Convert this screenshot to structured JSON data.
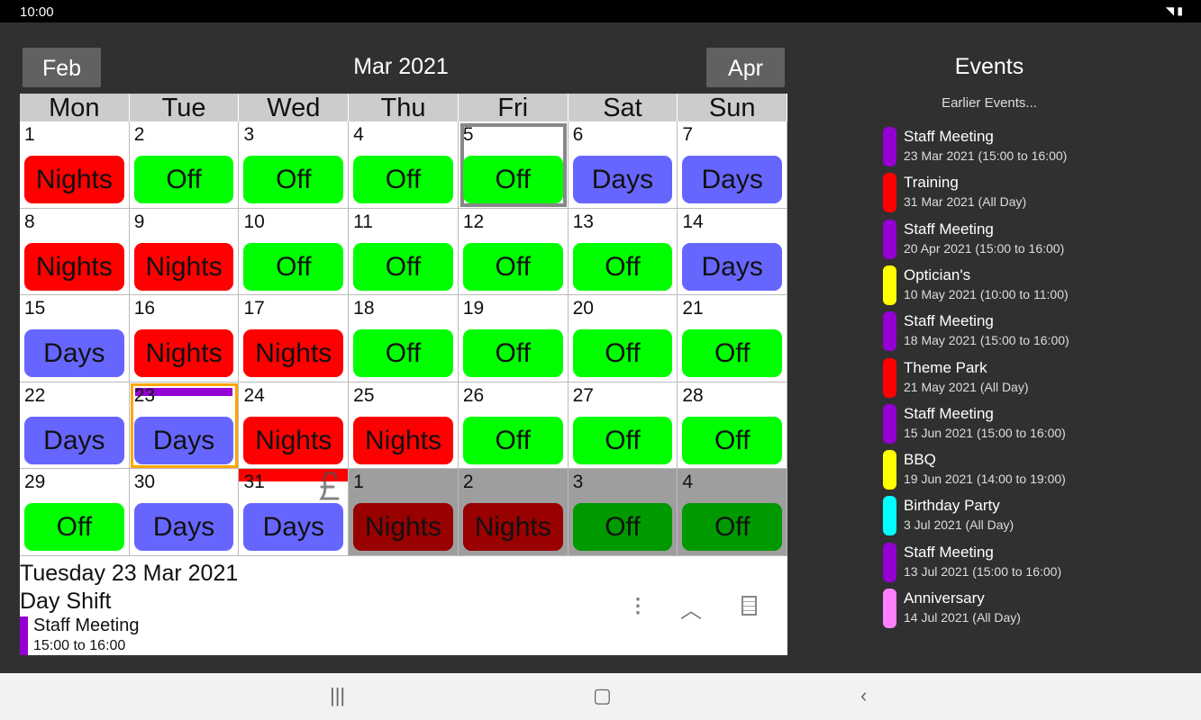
{
  "status": {
    "time": "10:00"
  },
  "header": {
    "prev": "Feb",
    "title": "Mar 2021",
    "next": "Apr"
  },
  "weekdays": [
    "Mon",
    "Tue",
    "Wed",
    "Thu",
    "Fri",
    "Sat",
    "Sun"
  ],
  "colors": {
    "Nights": "#ff0000",
    "Off": "#00ff00",
    "Days": "#6666ff",
    "Nights_other": "#990000",
    "Off_other": "#009900",
    "Days_other": "#3333aa"
  },
  "cells": [
    {
      "day": "1",
      "shift": "Nights"
    },
    {
      "day": "2",
      "shift": "Off"
    },
    {
      "day": "3",
      "shift": "Off"
    },
    {
      "day": "4",
      "shift": "Off"
    },
    {
      "day": "5",
      "shift": "Off",
      "today": true
    },
    {
      "day": "6",
      "shift": "Days"
    },
    {
      "day": "7",
      "shift": "Days"
    },
    {
      "day": "8",
      "shift": "Nights"
    },
    {
      "day": "9",
      "shift": "Nights"
    },
    {
      "day": "10",
      "shift": "Off"
    },
    {
      "day": "11",
      "shift": "Off"
    },
    {
      "day": "12",
      "shift": "Off"
    },
    {
      "day": "13",
      "shift": "Off"
    },
    {
      "day": "14",
      "shift": "Days"
    },
    {
      "day": "15",
      "shift": "Days"
    },
    {
      "day": "16",
      "shift": "Nights"
    },
    {
      "day": "17",
      "shift": "Nights"
    },
    {
      "day": "18",
      "shift": "Off"
    },
    {
      "day": "19",
      "shift": "Off"
    },
    {
      "day": "20",
      "shift": "Off"
    },
    {
      "day": "21",
      "shift": "Off"
    },
    {
      "day": "22",
      "shift": "Days"
    },
    {
      "day": "23",
      "shift": "Days",
      "selected": true,
      "event_color": "#9400d3"
    },
    {
      "day": "24",
      "shift": "Nights"
    },
    {
      "day": "25",
      "shift": "Nights"
    },
    {
      "day": "26",
      "shift": "Off"
    },
    {
      "day": "27",
      "shift": "Off"
    },
    {
      "day": "28",
      "shift": "Off"
    },
    {
      "day": "29",
      "shift": "Off"
    },
    {
      "day": "30",
      "shift": "Days"
    },
    {
      "day": "31",
      "shift": "Days",
      "top_bar": "#ff0000",
      "pound": "£"
    },
    {
      "day": "1",
      "shift": "Nights",
      "other": true
    },
    {
      "day": "2",
      "shift": "Nights",
      "other": true
    },
    {
      "day": "3",
      "shift": "Off",
      "other": true
    },
    {
      "day": "4",
      "shift": "Off",
      "other": true
    }
  ],
  "detail": {
    "date": "Tuesday 23 Mar 2021",
    "shift": "Day Shift",
    "event_title": "Staff Meeting",
    "event_time": "15:00 to 16:00",
    "event_color": "#9400d3"
  },
  "events_panel": {
    "title": "Events",
    "earlier": "Earlier Events...",
    "items": [
      {
        "title": "Staff Meeting",
        "sub": "23 Mar 2021 (15:00 to 16:00)",
        "color": "#9400d3"
      },
      {
        "title": "Training",
        "sub": "31 Mar 2021 (All Day)",
        "color": "#ff0000"
      },
      {
        "title": "Staff Meeting",
        "sub": "20 Apr 2021 (15:00 to 16:00)",
        "color": "#9400d3"
      },
      {
        "title": "Optician's",
        "sub": "10 May 2021 (10:00 to 11:00)",
        "color": "#ffff00"
      },
      {
        "title": "Staff Meeting",
        "sub": "18 May 2021 (15:00 to 16:00)",
        "color": "#9400d3"
      },
      {
        "title": "Theme Park",
        "sub": "21 May 2021 (All Day)",
        "color": "#ff0000"
      },
      {
        "title": "Staff Meeting",
        "sub": "15 Jun 2021 (15:00 to 16:00)",
        "color": "#9400d3"
      },
      {
        "title": "BBQ",
        "sub": "19 Jun 2021 (14:00 to 19:00)",
        "color": "#ffff00"
      },
      {
        "title": "Birthday Party",
        "sub": "3 Jul 2021 (All Day)",
        "color": "#00ffff"
      },
      {
        "title": "Staff Meeting",
        "sub": "13 Jul 2021 (15:00 to 16:00)",
        "color": "#9400d3"
      },
      {
        "title": "Anniversary",
        "sub": "14 Jul 2021 (All Day)",
        "color": "#ff80ff"
      }
    ]
  }
}
